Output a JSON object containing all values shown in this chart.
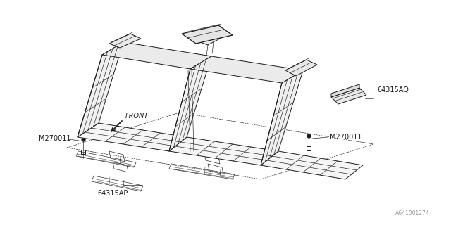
{
  "bg_color": "#ffffff",
  "line_color": "#1a1a1a",
  "text_color": "#1a1a1a",
  "labels": {
    "front": "FRONT",
    "part_aq": "64315AQ",
    "part_ap": "64315AP",
    "bolt_left": "M270011",
    "bolt_right": "M270011",
    "watermark": "A641001274"
  },
  "figsize": [
    6.4,
    3.2
  ],
  "dpi": 100
}
